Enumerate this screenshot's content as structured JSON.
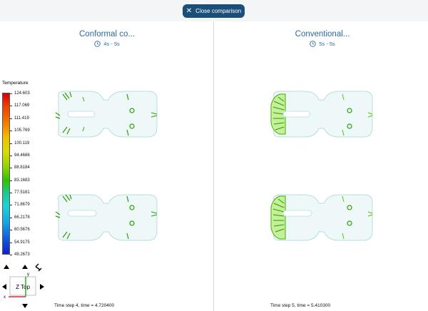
{
  "close_button": {
    "label": "Close comparison",
    "icon": "close-icon"
  },
  "left_panel": {
    "title": "Conformal co...",
    "time_range": "4s - 5s",
    "footer": "Time step 4, time = 4.720400"
  },
  "right_panel": {
    "title": "Conventional...",
    "time_range": "5s - 5s",
    "footer": "Time step 5, time = 5.410300"
  },
  "legend": {
    "title": "Temperature",
    "ticks": [
      "124.603",
      "117.069",
      "111.419",
      "105.769",
      "100.119",
      "94.4686",
      "88.8184",
      "83.1683",
      "77.5181",
      "71.8679",
      "66.2178",
      "60.5676",
      "54.9175",
      "49.2673"
    ]
  },
  "viewcube": {
    "face_label": "Z Top",
    "axis_x": "x",
    "axis_y": "y"
  },
  "colors": {
    "accent": "#1b4f7a",
    "title": "#2b6aa0",
    "heat_hot": "#2aa000",
    "part_outline": "#b8dce0"
  }
}
